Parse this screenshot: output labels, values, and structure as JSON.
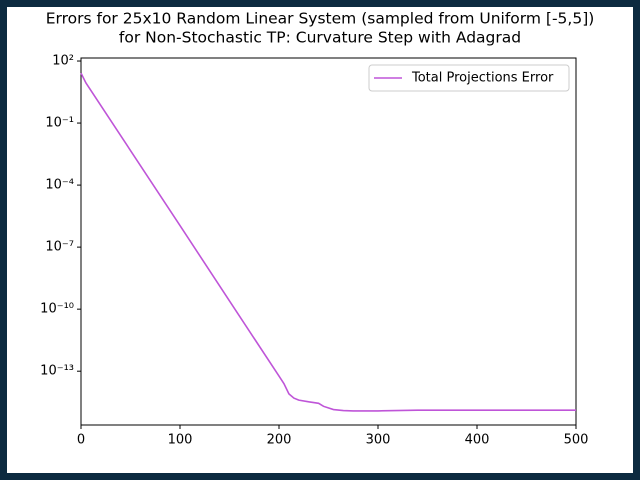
{
  "chart_data": {
    "type": "line",
    "title": [
      "Errors for 25x10 Random Linear System (sampled from Uniform [-5,5])",
      "for Non-Stochastic TP: Curvature Step with Adagrad"
    ],
    "x": [
      0,
      5,
      50,
      100,
      150,
      200,
      205,
      210,
      215,
      220,
      230,
      240,
      245,
      255,
      265,
      275,
      300,
      340,
      400,
      450,
      500
    ],
    "series": [
      {
        "name": "Total Projections Error",
        "color": "#bf55d8",
        "values": [
          26,
          8.7,
          0.0047,
          1.1e-06,
          2.5e-10,
          5.8e-14,
          2.5e-14,
          8e-15,
          5e-15,
          4e-15,
          3.3e-15,
          2.8e-15,
          2e-15,
          1.4e-15,
          1.25e-15,
          1.2e-15,
          1.2e-15,
          1.3e-15,
          1.3e-15,
          1.3e-15,
          1.3e-15
        ]
      }
    ],
    "xlim": [
      0,
      500
    ],
    "xticks": [
      0,
      100,
      200,
      300,
      400,
      500
    ],
    "ylim": [
      2.5e-16,
      140
    ],
    "yscale": "log",
    "yticks": [
      {
        "value": 100,
        "label": "10²"
      },
      {
        "value": 0.1,
        "label": "10⁻¹"
      },
      {
        "value": 0.0001,
        "label": "10⁻⁴"
      },
      {
        "value": 1e-07,
        "label": "10⁻⁷"
      },
      {
        "value": 1e-10,
        "label": "10⁻¹⁰"
      },
      {
        "value": 1e-13,
        "label": "10⁻¹³"
      }
    ],
    "legend": "upper right",
    "grid": false
  }
}
